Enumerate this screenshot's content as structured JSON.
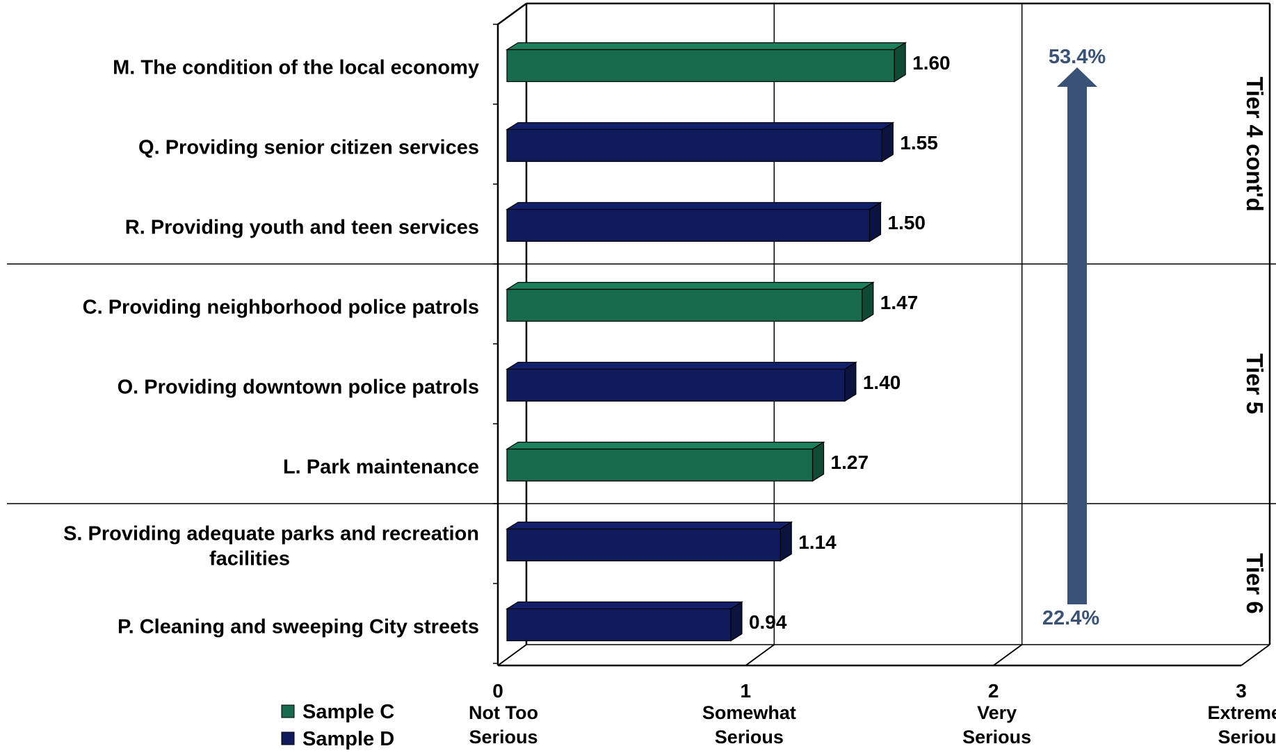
{
  "chart_data": {
    "type": "bar",
    "orientation": "horizontal",
    "categories": [
      "M. The condition of the local economy",
      "Q. Providing senior citizen services",
      "R. Providing youth and teen services",
      "C. Providing neighborhood police patrols",
      "O. Providing downtown police patrols",
      "L. Park maintenance",
      "S. Providing adequate parks and recreation facilities",
      "P. Cleaning and sweeping City streets"
    ],
    "values": [
      1.6,
      1.55,
      1.5,
      1.47,
      1.4,
      1.27,
      1.14,
      0.94
    ],
    "value_labels": [
      "1.60",
      "1.55",
      "1.50",
      "1.47",
      "1.40",
      "1.27",
      "1.14",
      "0.94"
    ],
    "bar_series": [
      "Sample C",
      "Sample D",
      "Sample D",
      "Sample C",
      "Sample D",
      "Sample C",
      "Sample D",
      "Sample D"
    ],
    "series": [
      {
        "name": "Sample C",
        "color": "#176a4c"
      },
      {
        "name": "Sample D",
        "color": "#0f1b5a"
      }
    ],
    "xlim": [
      0,
      3
    ],
    "x_ticks": [
      {
        "value": 0,
        "number": "0",
        "line1": "Not Too",
        "line2": "Serious"
      },
      {
        "value": 1,
        "number": "1",
        "line1": "Somewhat",
        "line2": "Serious"
      },
      {
        "value": 2,
        "number": "2",
        "line1": "Very",
        "line2": "Serious"
      },
      {
        "value": 3,
        "number": "3",
        "line1": "Extremely",
        "line2": "Serious"
      }
    ],
    "tiers": [
      {
        "label": "Tier 4 cont'd",
        "first": 0,
        "last": 2
      },
      {
        "label": "Tier 5",
        "first": 3,
        "last": 5
      },
      {
        "label": "Tier 6",
        "first": 6,
        "last": 7
      }
    ],
    "arrow": {
      "top_label": "53.4%",
      "bottom_label": "22.4%",
      "color": "#3a5275"
    },
    "grid": true,
    "legend_position": "bottom-left",
    "title": "",
    "xlabel": "",
    "ylabel": ""
  }
}
